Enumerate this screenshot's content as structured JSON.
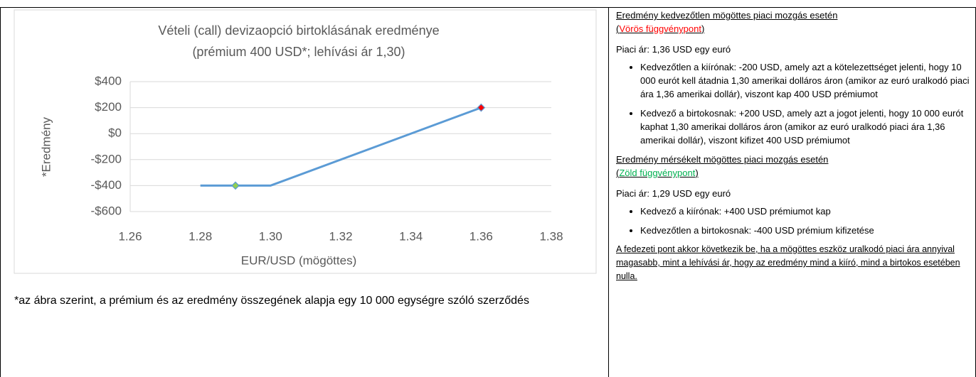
{
  "chart_data": {
    "type": "line",
    "title": [
      "Vételi (call) devizaopció birtoklásának eredménye",
      "(prémium 400 USD*; lehívási ár 1,30)"
    ],
    "x_label": "EUR/USD (mögöttes)",
    "y_label": "*Eredmény",
    "xlim": [
      1.26,
      1.38
    ],
    "xticks": [
      1.26,
      1.28,
      {
        "value": 1.3,
        "label": "1.30"
      },
      1.32,
      1.34,
      1.36,
      1.38
    ],
    "ylim": [
      -600,
      400
    ],
    "yticks": [
      {
        "value": -600,
        "label": "-$600"
      },
      {
        "value": -400,
        "label": "-$400"
      },
      {
        "value": -200,
        "label": "-$200"
      },
      {
        "value": 0,
        "label": "$0"
      },
      {
        "value": 200,
        "label": "$200"
      },
      {
        "value": 400,
        "label": "$400"
      }
    ],
    "grid": true,
    "series": [
      {
        "color": "#5b9bd5",
        "x": [
          1.28,
          1.3,
          1.36
        ],
        "values": [
          -400,
          -400,
          200
        ]
      },
      {
        "color": "#92d050",
        "x": [
          1.29
        ],
        "values": [
          -400
        ],
        "marker": "diamond"
      },
      {
        "color": "#ff0000",
        "x": [
          1.36
        ],
        "values": [
          200
        ],
        "marker": "diamond"
      }
    ]
  },
  "footnote": "*az ábra szerint, a prémium és az eredmény összegének alapja egy 10 000 egységre szóló szerződés",
  "right": {
    "sections": [
      {
        "heading": "Eredmény kedvezőtlen mögöttes piaci mozgás esetén",
        "note": [
          "(",
          "Vörös függvénypont",
          ")"
        ],
        "note_color": "#ff0000",
        "price": "Piaci ár: 1,36 USD egy euró",
        "bullets": [
          "Kedvezőtlen a kiírónak: -200 USD, amely azt a kötelezettséget jelenti, hogy 10 000 eurót kell átadnia 1,30 amerikai dolláros áron (amikor az euró uralkodó piaci ára 1,36 amerikai dollár), viszont kap 400 USD prémiumot",
          "Kedvező a birtokosnak: +200 USD, amely azt a jogot jelenti, hogy 10 000 eurót kaphat 1,30 amerikai dolláros áron (amikor az euró uralkodó piaci ára 1,36 amerikai dollár), viszont kifizet 400 USD prémiumot"
        ]
      },
      {
        "heading": "Eredmény mérsékelt mögöttes piaci mozgás esetén",
        "note": [
          "(",
          "Zöld függvénypont",
          ")"
        ],
        "note_color": "#00b050",
        "price": "Piaci ár: 1,29 USD egy euró",
        "bullets": [
          "Kedvező a kiírónak: +400 USD prémiumot kap",
          "Kedvezőtlen a birtokosnak: -400 USD prémium kifizetése"
        ]
      }
    ],
    "closing": "A fedezeti pont akkor következik be, ha a mögöttes eszköz uralkodó piaci ára annyival magasabb, mint a lehívási ár, hogy az eredmény mind a kiíró, mind a birtokos esetében nulla."
  }
}
